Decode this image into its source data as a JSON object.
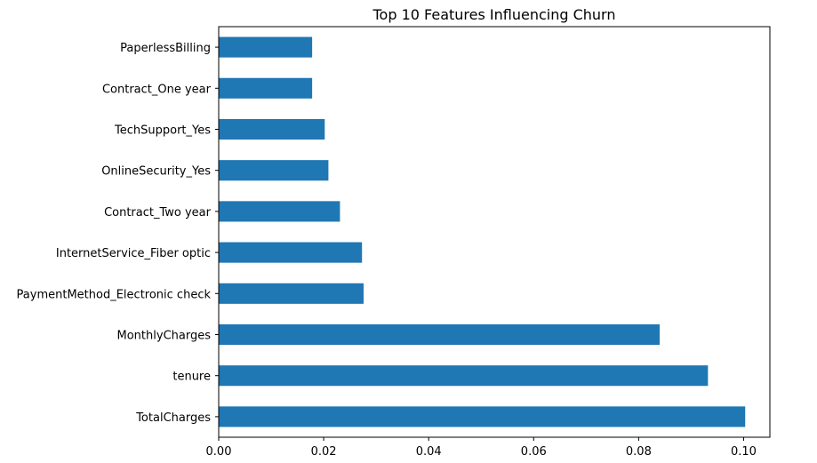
{
  "chart_data": {
    "type": "bar",
    "orientation": "horizontal",
    "title": "Top 10 Features Influencing Churn",
    "xlabel": "",
    "ylabel": "",
    "categories": [
      "TotalCharges",
      "tenure",
      "MonthlyCharges",
      "PaymentMethod_Electronic check",
      "InternetService_Fiber optic",
      "Contract_Two year",
      "OnlineSecurity_Yes",
      "TechSupport_Yes",
      "Contract_One year",
      "PaperlessBilling"
    ],
    "values": [
      0.1003,
      0.0932,
      0.084,
      0.0276,
      0.0273,
      0.0231,
      0.0209,
      0.0202,
      0.0178,
      0.0178
    ],
    "xlim": [
      0,
      0.105
    ],
    "xticks": [
      "0.00",
      "0.02",
      "0.04",
      "0.06",
      "0.08",
      "0.10"
    ],
    "xtick_values": [
      0.0,
      0.02,
      0.04,
      0.06,
      0.08,
      0.1
    ],
    "bar_color": "#1f77b4",
    "grid": false,
    "legend": "none"
  }
}
